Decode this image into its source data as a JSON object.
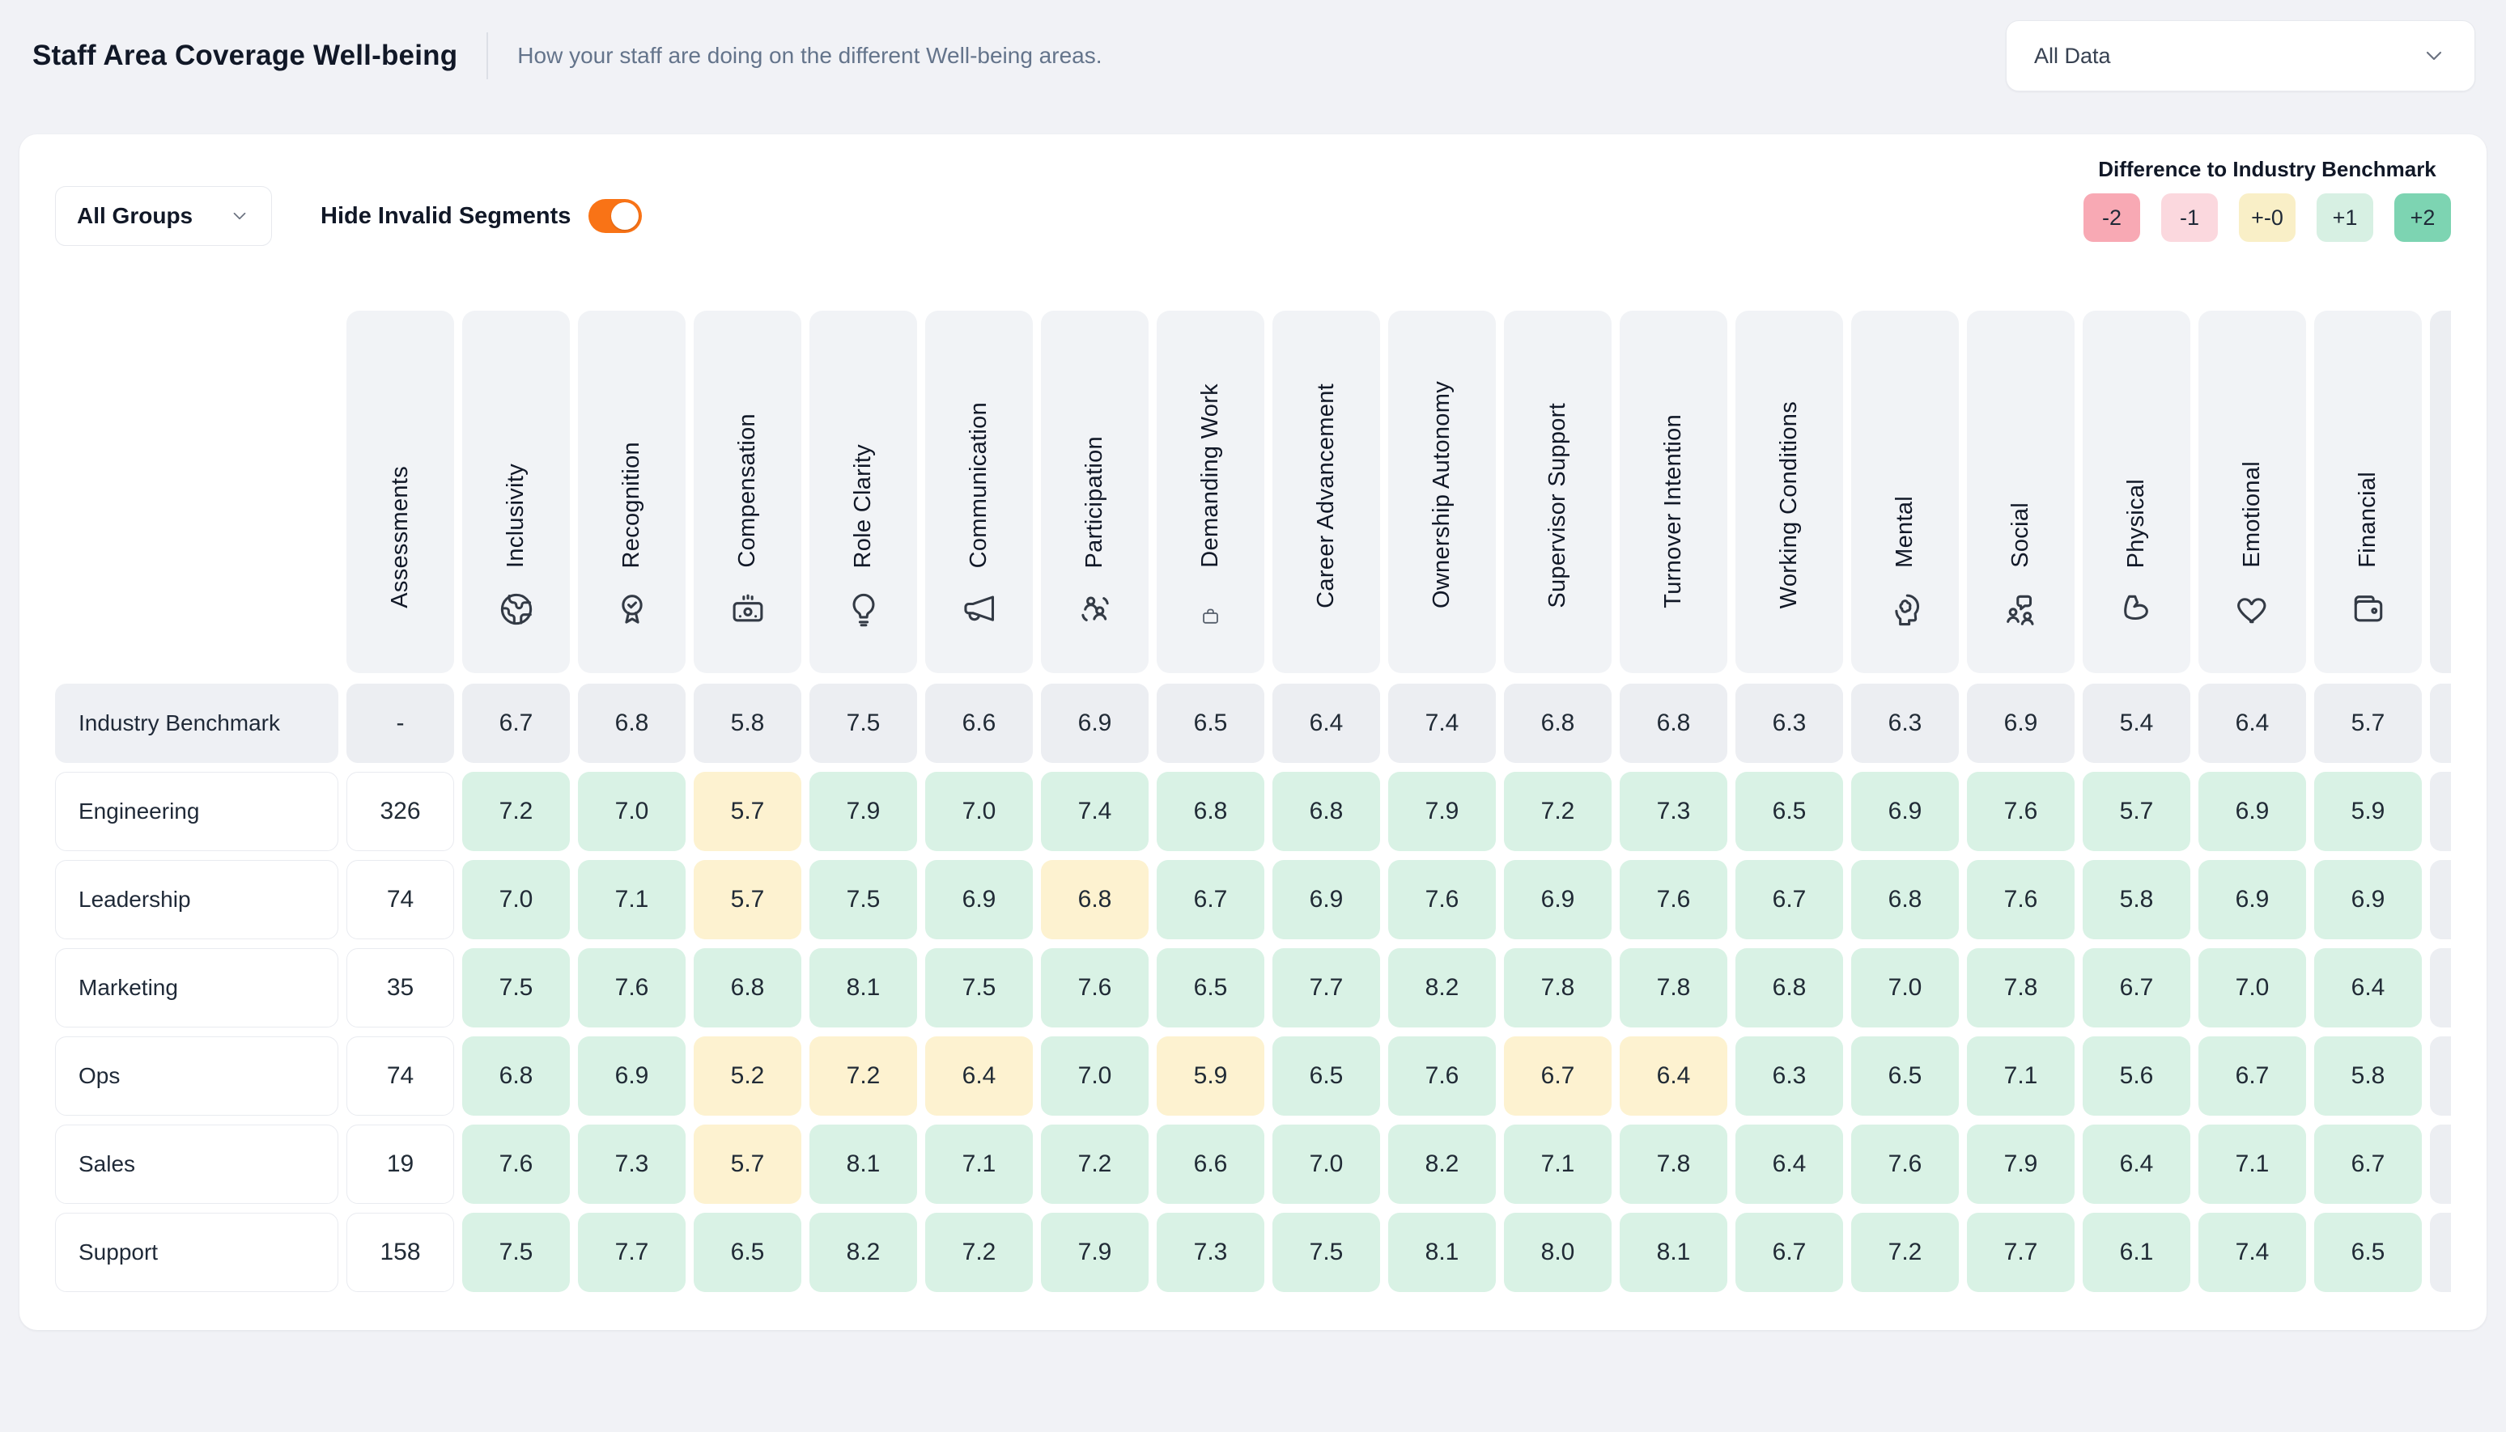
{
  "page": {
    "title": "Staff Area Coverage Well-being",
    "subtitle": "How your staff are doing on the different Well-being areas."
  },
  "filters": {
    "data_scope": "All Data",
    "groups": "All Groups",
    "hide_invalid_label": "Hide Invalid Segments",
    "hide_invalid_on": true,
    "toggle_color": "#f97316"
  },
  "legend": {
    "title": "Difference to Industry Benchmark",
    "chips": [
      {
        "label": "-2",
        "color": "#f8a9b4"
      },
      {
        "label": "-1",
        "color": "#fbd8de"
      },
      {
        "label": "+-0",
        "color": "#f9efc7"
      },
      {
        "label": "+1",
        "color": "#d7f0e3"
      },
      {
        "label": "+2",
        "color": "#7dd4b2"
      }
    ]
  },
  "colors": {
    "tone_b": "#eceef2",
    "tone_plus": "#d9f2e5",
    "tone_zero": "#fdf2d0"
  },
  "table": {
    "columns": [
      {
        "label": "Assessments",
        "icon": null
      },
      {
        "label": "Inclusivity",
        "icon": "globe"
      },
      {
        "label": "Recognition",
        "icon": "award"
      },
      {
        "label": "Compensation",
        "icon": "banknote"
      },
      {
        "label": "Role Clarity",
        "icon": "lightbulb"
      },
      {
        "label": "Communication",
        "icon": "megaphone"
      },
      {
        "label": "Participation",
        "icon": "users"
      },
      {
        "label": "Demanding Work",
        "icon": "briefcase-small"
      },
      {
        "label": "Career Advancement",
        "icon": null
      },
      {
        "label": "Ownership Autonomy",
        "icon": null
      },
      {
        "label": "Supervisor Support",
        "icon": null
      },
      {
        "label": "Turnover Intention",
        "icon": null
      },
      {
        "label": "Working Conditions",
        "icon": null
      },
      {
        "label": "Mental",
        "icon": "head-brain"
      },
      {
        "label": "Social",
        "icon": "people-chat"
      },
      {
        "label": "Physical",
        "icon": "biceps"
      },
      {
        "label": "Emotional",
        "icon": "heart"
      },
      {
        "label": "Financial",
        "icon": "wallet"
      }
    ],
    "rows": [
      {
        "label": "Industry Benchmark",
        "benchmark": true,
        "assessments": "-",
        "values": [
          "6.7",
          "6.8",
          "5.8",
          "7.5",
          "6.6",
          "6.9",
          "6.5",
          "6.4",
          "7.4",
          "6.8",
          "6.8",
          "6.3",
          "6.3",
          "6.9",
          "5.4",
          "6.4",
          "5.7"
        ],
        "tones": [
          "b",
          "b",
          "b",
          "b",
          "b",
          "b",
          "b",
          "b",
          "b",
          "b",
          "b",
          "b",
          "b",
          "b",
          "b",
          "b",
          "b"
        ]
      },
      {
        "label": "Engineering",
        "benchmark": false,
        "assessments": "326",
        "values": [
          "7.2",
          "7.0",
          "5.7",
          "7.9",
          "7.0",
          "7.4",
          "6.8",
          "6.8",
          "7.9",
          "7.2",
          "7.3",
          "6.5",
          "6.9",
          "7.6",
          "5.7",
          "6.9",
          "5.9"
        ],
        "tones": [
          "+",
          "+",
          "0",
          "+",
          "+",
          "+",
          "+",
          "+",
          "+",
          "+",
          "+",
          "+",
          "+",
          "+",
          "+",
          "+",
          "+"
        ]
      },
      {
        "label": "Leadership",
        "benchmark": false,
        "assessments": "74",
        "values": [
          "7.0",
          "7.1",
          "5.7",
          "7.5",
          "6.9",
          "6.8",
          "6.7",
          "6.9",
          "7.6",
          "6.9",
          "7.6",
          "6.7",
          "6.8",
          "7.6",
          "5.8",
          "6.9",
          "6.9"
        ],
        "tones": [
          "+",
          "+",
          "0",
          "+",
          "+",
          "0",
          "+",
          "+",
          "+",
          "+",
          "+",
          "+",
          "+",
          "+",
          "+",
          "+",
          "+"
        ]
      },
      {
        "label": "Marketing",
        "benchmark": false,
        "assessments": "35",
        "values": [
          "7.5",
          "7.6",
          "6.8",
          "8.1",
          "7.5",
          "7.6",
          "6.5",
          "7.7",
          "8.2",
          "7.8",
          "7.8",
          "6.8",
          "7.0",
          "7.8",
          "6.7",
          "7.0",
          "6.4"
        ],
        "tones": [
          "+",
          "+",
          "+",
          "+",
          "+",
          "+",
          "+",
          "+",
          "+",
          "+",
          "+",
          "+",
          "+",
          "+",
          "+",
          "+",
          "+"
        ]
      },
      {
        "label": "Ops",
        "benchmark": false,
        "assessments": "74",
        "values": [
          "6.8",
          "6.9",
          "5.2",
          "7.2",
          "6.4",
          "7.0",
          "5.9",
          "6.5",
          "7.6",
          "6.7",
          "6.4",
          "6.3",
          "6.5",
          "7.1",
          "5.6",
          "6.7",
          "5.8"
        ],
        "tones": [
          "+",
          "+",
          "0",
          "0",
          "0",
          "+",
          "0",
          "+",
          "+",
          "0",
          "0",
          "+",
          "+",
          "+",
          "+",
          "+",
          "+"
        ]
      },
      {
        "label": "Sales",
        "benchmark": false,
        "assessments": "19",
        "values": [
          "7.6",
          "7.3",
          "5.7",
          "8.1",
          "7.1",
          "7.2",
          "6.6",
          "7.0",
          "8.2",
          "7.1",
          "7.8",
          "6.4",
          "7.6",
          "7.9",
          "6.4",
          "7.1",
          "6.7"
        ],
        "tones": [
          "+",
          "+",
          "0",
          "+",
          "+",
          "+",
          "+",
          "+",
          "+",
          "+",
          "+",
          "+",
          "+",
          "+",
          "+",
          "+",
          "+"
        ]
      },
      {
        "label": "Support",
        "benchmark": false,
        "assessments": "158",
        "values": [
          "7.5",
          "7.7",
          "6.5",
          "8.2",
          "7.2",
          "7.9",
          "7.3",
          "7.5",
          "8.1",
          "8.0",
          "8.1",
          "6.7",
          "7.2",
          "7.7",
          "6.1",
          "7.4",
          "6.5"
        ],
        "tones": [
          "+",
          "+",
          "+",
          "+",
          "+",
          "+",
          "+",
          "+",
          "+",
          "+",
          "+",
          "+",
          "+",
          "+",
          "+",
          "+",
          "+"
        ]
      }
    ]
  }
}
